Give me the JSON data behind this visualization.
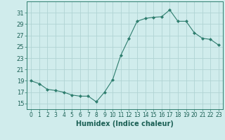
{
  "x": [
    0,
    1,
    2,
    3,
    4,
    5,
    6,
    7,
    8,
    9,
    10,
    11,
    12,
    13,
    14,
    15,
    16,
    17,
    18,
    19,
    20,
    21,
    22,
    23
  ],
  "y": [
    19,
    18.5,
    17.5,
    17.3,
    17.0,
    16.5,
    16.3,
    16.3,
    15.3,
    17.0,
    19.2,
    23.5,
    26.5,
    29.5,
    30.0,
    30.2,
    30.3,
    31.5,
    29.5,
    29.5,
    27.5,
    26.5,
    26.3,
    25.3
  ],
  "line_color": "#2e7d6e",
  "marker": "D",
  "marker_size": 2,
  "bg_color": "#d0ecec",
  "grid_color": "#b0d4d4",
  "xlabel": "Humidex (Indice chaleur)",
  "xlim": [
    -0.5,
    23.5
  ],
  "ylim": [
    14,
    33
  ],
  "yticks": [
    15,
    17,
    19,
    21,
    23,
    25,
    27,
    29,
    31
  ],
  "xticks": [
    0,
    1,
    2,
    3,
    4,
    5,
    6,
    7,
    8,
    9,
    10,
    11,
    12,
    13,
    14,
    15,
    16,
    17,
    18,
    19,
    20,
    21,
    22,
    23
  ],
  "tick_color": "#2e7d6e",
  "label_color": "#1a5f54",
  "xlabel_fontsize": 7,
  "ytick_fontsize": 6,
  "xtick_fontsize": 5.5
}
